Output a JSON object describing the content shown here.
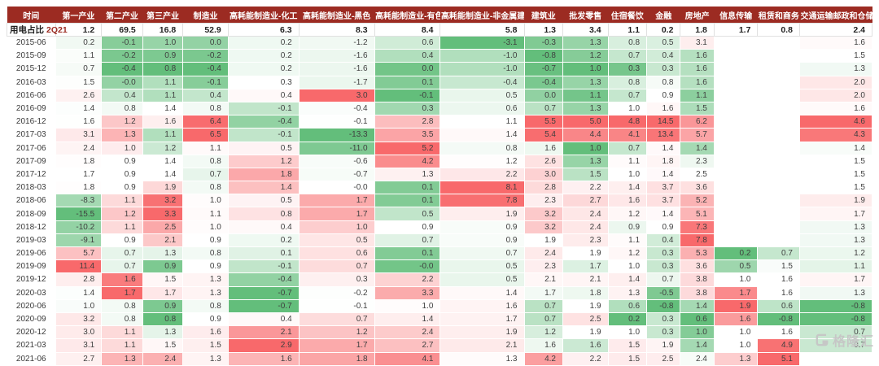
{
  "colors": {
    "header_bg": "#9c2b22",
    "header_text": "#ffffff",
    "scale_low_green": "#63be7b",
    "scale_mid_white": "#ffffff",
    "scale_high_red": "#f8696b",
    "usage_period_red": "#9c2b22"
  },
  "watermark": {
    "text": "格隆汇"
  },
  "chart_data": {
    "type": "heatmap",
    "title": "",
    "legend": "per-column 3-color scale: low=green, median=white, high=red",
    "columns": [
      "时间",
      "第一产业",
      "第二产业",
      "第三产业",
      "制造业",
      "高耗能制造业-化工",
      "高耗能制造业-黑色",
      "高耗能制造业-有色",
      "高耗能制造业-非金属建材",
      "建筑业",
      "批发零售",
      "住宿餐饮",
      "金融",
      "房地产",
      "信息传输",
      "租赁和商务",
      "交通运输邮政和仓储"
    ],
    "usage_row": {
      "label": "用电占比",
      "period": "2Q21",
      "values": [
        "1.2",
        "69.5",
        "16.8",
        "52.9",
        "6.3",
        "8.3",
        "8.4",
        "5.8",
        "1.3",
        "3.4",
        "1.1",
        "0.2",
        "1.8",
        "1.7",
        "0.8",
        "2.4"
      ]
    },
    "rows": [
      {
        "date": "2015-06",
        "values": [
          "0.2",
          "-0.1",
          "1.0",
          "0.0",
          "0.2",
          "-1.2",
          "0.6",
          "-3.1",
          "-0.3",
          "1.3",
          "0.8",
          "0.5",
          "3.1",
          "",
          "",
          "1.6"
        ]
      },
      {
        "date": "2015-09",
        "values": [
          "1.1",
          "-0.2",
          "0.9",
          "-0.2",
          "0.2",
          "-1.6",
          "0.4",
          "-1.0",
          "-0.8",
          "1.2",
          "0.7",
          "0.4",
          "1.6",
          "",
          "",
          "1.5"
        ]
      },
      {
        "date": "2015-12",
        "values": [
          "0.7",
          "-0.4",
          "0.8",
          "-0.4",
          "0.2",
          "-1.6",
          "0.0",
          "-1.0",
          "-0.7",
          "1.0",
          "0.3",
          "0.3",
          "1.6",
          "",
          "",
          "1.3"
        ]
      },
      {
        "date": "2016-03",
        "values": [
          "1.5",
          "-0.0",
          "1.1",
          "-0.1",
          "0.3",
          "-1.7",
          "0.1",
          "-0.4",
          "-0.4",
          "1.3",
          "0.8",
          "0.8",
          "1.6",
          "",
          "",
          "2.0"
        ]
      },
      {
        "date": "2016-06",
        "values": [
          "2.6",
          "0.4",
          "1.1",
          "0.4",
          "0.4",
          "3.0",
          "-0.1",
          "0.5",
          "0.0",
          "1.1",
          "0.7",
          "0.9",
          "1.1",
          "",
          "",
          "2.0"
        ]
      },
      {
        "date": "2016-09",
        "values": [
          "1.4",
          "0.8",
          "1.4",
          "0.8",
          "-0.1",
          "-0.4",
          "0.3",
          "0.6",
          "0.7",
          "1.3",
          "1.0",
          "1.6",
          "1.5",
          "",
          "",
          "1.6"
        ]
      },
      {
        "date": "2016-12",
        "values": [
          "1.6",
          "1.2",
          "1.6",
          "6.4",
          "-0.4",
          "-0.1",
          "2.8",
          "1.1",
          "5.5",
          "5.0",
          "4.8",
          "14.5",
          "6.2",
          "",
          "",
          "4.6"
        ]
      },
      {
        "date": "2017-03",
        "values": [
          "3.1",
          "1.3",
          "1.1",
          "6.5",
          "-0.1",
          "-13.3",
          "3.5",
          "1.4",
          "5.4",
          "4.4",
          "4.1",
          "13.4",
          "5.7",
          "",
          "",
          "4.3"
        ]
      },
      {
        "date": "2017-06",
        "values": [
          "2.4",
          "1.0",
          "1.2",
          "1.1",
          "0.5",
          "-11.0",
          "5.2",
          "0.8",
          "1.6",
          "1.0",
          "0.7",
          "1.4",
          "1.4",
          "",
          "",
          "1.4"
        ]
      },
      {
        "date": "2017-09",
        "values": [
          "1.8",
          "0.9",
          "1.4",
          "0.8",
          "1.2",
          "-0.6",
          "4.2",
          "1.2",
          "2.6",
          "1.3",
          "1.1",
          "1.8",
          "2.3",
          "",
          "",
          "1.5"
        ]
      },
      {
        "date": "2017-12",
        "values": [
          "1.7",
          "0.9",
          "1.4",
          "0.7",
          "1.8",
          "-0.7",
          "1.3",
          "2.2",
          "3.0",
          "1.5",
          "1.0",
          "1.4",
          "2.5",
          "",
          "",
          "1.5"
        ]
      },
      {
        "date": "2018-03",
        "values": [
          "1.8",
          "0.9",
          "1.9",
          "0.8",
          "1.4",
          "-0.0",
          "0.1",
          "8.1",
          "2.8",
          "2.2",
          "1.4",
          "3.7",
          "3.6",
          "",
          "",
          "1.5"
        ]
      },
      {
        "date": "2018-06",
        "values": [
          "-8.3",
          "1.1",
          "3.2",
          "1.0",
          "0.5",
          "1.7",
          "0.1",
          "7.8",
          "2.3",
          "2.7",
          "1.6",
          "3.7",
          "5.2",
          "",
          "",
          "1.9"
        ]
      },
      {
        "date": "2018-09",
        "values": [
          "-15.5",
          "1.2",
          "3.3",
          "1.1",
          "0.8",
          "1.7",
          "0.5",
          "1.9",
          "3.2",
          "2.4",
          "1.2",
          "1.4",
          "5.1",
          "",
          "",
          "1.7"
        ]
      },
      {
        "date": "2018-12",
        "values": [
          "-10.2",
          "1.1",
          "2.5",
          "1.0",
          "0.4",
          "1.0",
          "0.9",
          "0.9",
          "3.2",
          "2.4",
          "0.9",
          "0.9",
          "7.3",
          "",
          "",
          "1.3"
        ]
      },
      {
        "date": "2019-03",
        "values": [
          "-9.1",
          "0.9",
          "2.1",
          "0.9",
          "0.2",
          "0.5",
          "0.7",
          "0.9",
          "1.9",
          "2.3",
          "1.1",
          "0.4",
          "7.8",
          "",
          "",
          "1.3"
        ]
      },
      {
        "date": "2019-06",
        "values": [
          "5.7",
          "0.7",
          "1.3",
          "0.8",
          "0.1",
          "0.6",
          "0.1",
          "0.7",
          "2.4",
          "1.9",
          "1.2",
          "0.3",
          "5.3",
          "0.2",
          "0.7",
          "1.2"
        ]
      },
      {
        "date": "2019-09",
        "values": [
          "11.4",
          "0.7",
          "0.9",
          "0.9",
          "-0.1",
          "0.7",
          "-0.0",
          "0.5",
          "2.3",
          "1.7",
          "1.0",
          "0.3",
          "3.6",
          "0.5",
          "1.5",
          "1.1"
        ]
      },
      {
        "date": "2019-12",
        "values": [
          "2.8",
          "1.6",
          "1.5",
          "1.3",
          "-0.4",
          "0.3",
          "2.2",
          "0.5",
          "2.1",
          "2.1",
          "1.4",
          "0.7",
          "3.8",
          "1.0",
          "1.6",
          "1.7"
        ]
      },
      {
        "date": "2020-03",
        "values": [
          "1.4",
          "1.7",
          "1.7",
          "1.3",
          "-0.7",
          "-0.2",
          "3.3",
          "1.4",
          "1.7",
          "1.8",
          "1.3",
          "-0.5",
          "3.8",
          "1.7",
          "1.6",
          "1.3"
        ]
      },
      {
        "date": "2020-06",
        "values": [
          "1.0",
          "0.8",
          "0.9",
          "0.8",
          "-0.7",
          "-0.1",
          "1.0",
          "1.6",
          "0.7",
          "1.9",
          "0.6",
          "-0.8",
          "1.4",
          "1.9",
          "0.6",
          "-0.8"
        ]
      },
      {
        "date": "2020-09",
        "values": [
          "3.2",
          "0.8",
          "0.8",
          "0.9",
          "0.4",
          "0.7",
          "1.4",
          "1.7",
          "0.7",
          "2.5",
          "0.2",
          "0.3",
          "0.6",
          "1.6",
          "-0.8",
          "-0.8"
        ]
      },
      {
        "date": "2020-12",
        "values": [
          "3.0",
          "1.1",
          "1.3",
          "1.6",
          "2.1",
          "1.2",
          "2.4",
          "1.9",
          "1.2",
          "1.9",
          "1.0",
          "0.3",
          "1.0",
          "1.0",
          "1.6",
          "0.7"
        ]
      },
      {
        "date": "2021-03",
        "values": [
          "3.1",
          "1.1",
          "1.5",
          "1.5",
          "2.9",
          "1.7",
          "2.7",
          "2.1",
          "1.6",
          "1.6",
          "1.5",
          "1.9",
          "1.4",
          "1.0",
          "4.9",
          "0.7"
        ]
      },
      {
        "date": "2021-06",
        "values": [
          "2.7",
          "1.3",
          "2.4",
          "1.3",
          "1.6",
          "1.8",
          "4.1",
          "1.3",
          "4.2",
          "2.2",
          "1.5",
          "2.5",
          "2.4",
          "1.3",
          "5.1",
          ""
        ]
      }
    ]
  }
}
